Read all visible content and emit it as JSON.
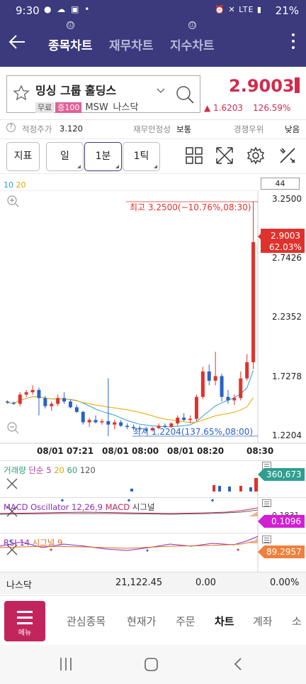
{
  "status_bar": {
    "time": "9:30",
    "battery": "21%",
    "network": "LTE"
  },
  "header": {
    "tabs": [
      {
        "label": "종목차트",
        "active": true
      },
      {
        "label": "재무차트",
        "active": false
      },
      {
        "label": "지수차트",
        "active": false
      }
    ]
  },
  "stock": {
    "name": "밍싱 그룹 홀딩스",
    "tags": [
      "무료",
      "증100"
    ],
    "ticker": "MSW",
    "market": "나스닥",
    "price": "2.9003",
    "change": "1.6203",
    "change_pct": "126.59%"
  },
  "info_row": {
    "fair_price_label": "적정주가",
    "fair_price_value": "3.120",
    "stability_label": "재무안정성",
    "stability_value": "보통",
    "competition_label": "경쟁우위",
    "competition_value": "낮음"
  },
  "toolbar": {
    "indicator_label": "지표",
    "period_label": "일",
    "interval_label": "1분",
    "tick_label": "1틱"
  },
  "chart": {
    "ma_legend": [
      "10",
      "20"
    ],
    "count": "44",
    "high_annotation": "최고 3.2500(−10.76%,08:30)",
    "low_annotation": "최저 1.2204(137.65%,08:00)",
    "current_price_tag": "2.9003",
    "current_pct_tag": "62.03%",
    "price_axis": [
      "3.2500",
      "2.7426",
      "2.2352",
      "1.7278",
      "1.2204"
    ],
    "time_axis": [
      "08/01 07:21",
      "08/01 08:00",
      "08/01 08:20",
      "08:30"
    ]
  },
  "chart_data": {
    "type": "candlestick",
    "ylim": [
      1.2204,
      3.25
    ],
    "candles": [
      {
        "o": 1.52,
        "h": 1.53,
        "l": 1.5,
        "c": 1.51
      },
      {
        "o": 1.51,
        "h": 1.52,
        "l": 1.49,
        "c": 1.5
      },
      {
        "o": 1.5,
        "h": 1.6,
        "l": 1.48,
        "c": 1.58
      },
      {
        "o": 1.58,
        "h": 1.62,
        "l": 1.56,
        "c": 1.6
      },
      {
        "o": 1.6,
        "h": 1.66,
        "l": 1.58,
        "c": 1.62
      },
      {
        "o": 1.62,
        "h": 1.64,
        "l": 1.4,
        "c": 1.55
      },
      {
        "o": 1.55,
        "h": 1.57,
        "l": 1.46,
        "c": 1.48
      },
      {
        "o": 1.48,
        "h": 1.52,
        "l": 1.44,
        "c": 1.5
      },
      {
        "o": 1.5,
        "h": 1.58,
        "l": 1.48,
        "c": 1.55
      },
      {
        "o": 1.55,
        "h": 1.6,
        "l": 1.5,
        "c": 1.52
      },
      {
        "o": 1.52,
        "h": 1.54,
        "l": 1.46,
        "c": 1.47
      },
      {
        "o": 1.47,
        "h": 1.49,
        "l": 1.42,
        "c": 1.43
      },
      {
        "o": 1.43,
        "h": 1.44,
        "l": 1.32,
        "c": 1.34
      },
      {
        "o": 1.34,
        "h": 1.38,
        "l": 1.3,
        "c": 1.36
      },
      {
        "o": 1.36,
        "h": 1.4,
        "l": 1.33,
        "c": 1.34
      },
      {
        "o": 1.34,
        "h": 1.37,
        "l": 1.32,
        "c": 1.35
      },
      {
        "o": 1.35,
        "h": 1.72,
        "l": 1.22,
        "c": 1.32
      },
      {
        "o": 1.32,
        "h": 1.36,
        "l": 1.28,
        "c": 1.34
      },
      {
        "o": 1.34,
        "h": 1.36,
        "l": 1.3,
        "c": 1.31
      },
      {
        "o": 1.31,
        "h": 1.33,
        "l": 1.28,
        "c": 1.3
      },
      {
        "o": 1.3,
        "h": 1.32,
        "l": 1.27,
        "c": 1.29
      },
      {
        "o": 1.29,
        "h": 1.31,
        "l": 1.26,
        "c": 1.28
      },
      {
        "o": 1.28,
        "h": 1.3,
        "l": 1.25,
        "c": 1.27
      },
      {
        "o": 1.27,
        "h": 1.3,
        "l": 1.26,
        "c": 1.29
      },
      {
        "o": 1.29,
        "h": 1.33,
        "l": 1.28,
        "c": 1.31
      },
      {
        "o": 1.31,
        "h": 1.33,
        "l": 1.29,
        "c": 1.3
      },
      {
        "o": 1.3,
        "h": 1.34,
        "l": 1.29,
        "c": 1.33
      },
      {
        "o": 1.33,
        "h": 1.4,
        "l": 1.31,
        "c": 1.38
      },
      {
        "o": 1.38,
        "h": 1.42,
        "l": 1.35,
        "c": 1.36
      },
      {
        "o": 1.36,
        "h": 1.4,
        "l": 1.33,
        "c": 1.37
      },
      {
        "o": 1.37,
        "h": 1.58,
        "l": 1.35,
        "c": 1.56
      },
      {
        "o": 1.56,
        "h": 1.82,
        "l": 1.54,
        "c": 1.78
      },
      {
        "o": 1.78,
        "h": 1.84,
        "l": 1.66,
        "c": 1.7
      },
      {
        "o": 1.7,
        "h": 1.95,
        "l": 1.66,
        "c": 1.74
      },
      {
        "o": 1.74,
        "h": 1.76,
        "l": 1.52,
        "c": 1.56
      },
      {
        "o": 1.56,
        "h": 1.62,
        "l": 1.5,
        "c": 1.53
      },
      {
        "o": 1.53,
        "h": 1.58,
        "l": 1.49,
        "c": 1.55
      },
      {
        "o": 1.55,
        "h": 1.78,
        "l": 1.53,
        "c": 1.72
      },
      {
        "o": 1.72,
        "h": 1.93,
        "l": 1.7,
        "c": 1.86
      },
      {
        "o": 1.86,
        "h": 3.25,
        "l": 1.8,
        "c": 2.9003
      }
    ]
  },
  "indicators": {
    "volume": {
      "title_a": "거래량",
      "title_b": "단순",
      "p1": "5",
      "p2": "20",
      "p3": "60",
      "p4": "120",
      "value": "360,673"
    },
    "macd": {
      "title_a": "MACD Oscillator 12,26,9",
      "title_b": "MACD",
      "title_c": "시그널",
      "axis_value": "0.1831",
      "value": "0.1096"
    },
    "rsi": {
      "title_a": "RSI 14",
      "title_b": "시그널 9",
      "value": "89.2957"
    }
  },
  "index_row": {
    "name": "나스닥",
    "value": "21,122.45",
    "change": "0.00",
    "change_pct": "0.00%"
  },
  "bottom_nav": {
    "menu_label": "메뉴",
    "items": [
      {
        "label": "관심종목",
        "active": false
      },
      {
        "label": "현재가",
        "active": false
      },
      {
        "label": "주문",
        "active": false
      },
      {
        "label": "차트",
        "active": true
      },
      {
        "label": "계좌",
        "active": false
      },
      {
        "label": "소",
        "active": false
      }
    ]
  },
  "colors": {
    "header": "#3a3a7c",
    "up": "#e0322c",
    "down": "#2a62c4",
    "price": "#d02b4d",
    "menu": "#c2255c"
  }
}
